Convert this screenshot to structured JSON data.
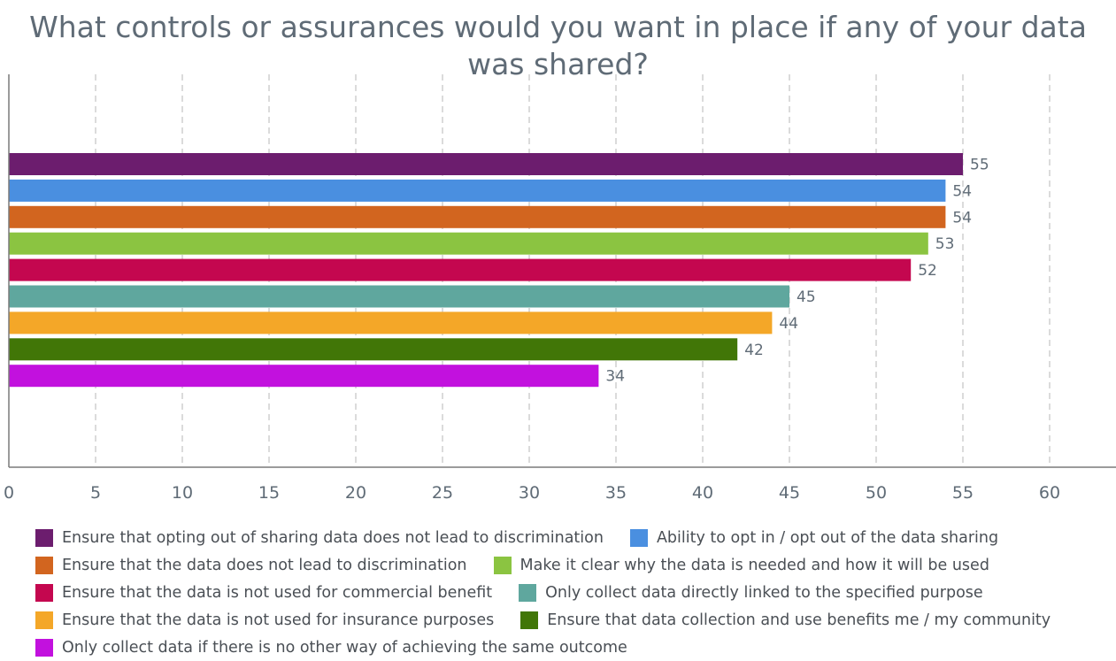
{
  "chart_data": {
    "type": "bar",
    "orientation": "horizontal",
    "title": "What controls or assurances would you want in place if any of your data was shared?",
    "xlim": [
      0,
      64
    ],
    "x_ticks": [
      0,
      5,
      10,
      15,
      20,
      25,
      30,
      35,
      40,
      45,
      50,
      55,
      60
    ],
    "grid": "vertical-dashed",
    "legend_position": "bottom",
    "series": [
      {
        "name": "Ensure that opting out of sharing data does not lead to discrimination",
        "value": 55,
        "color": "#6c1d6e"
      },
      {
        "name": "Ability to opt in / opt out of the data sharing",
        "value": 54,
        "color": "#4a8fe0"
      },
      {
        "name": "Ensure that the data does not lead to discrimination",
        "value": 54,
        "color": "#d2651f"
      },
      {
        "name": "Make it clear why the data is needed and how it will be used",
        "value": 53,
        "color": "#8bc441"
      },
      {
        "name": "Ensure that the data is not used for commercial benefit",
        "value": 52,
        "color": "#c4074f"
      },
      {
        "name": "Only collect data directly linked to the specified purpose",
        "value": 45,
        "color": "#5fa79e"
      },
      {
        "name": "Ensure that the data is not used for insurance purposes",
        "value": 44,
        "color": "#f4a728"
      },
      {
        "name": "Ensure that data collection and use benefits me / my community",
        "value": 42,
        "color": "#417607"
      },
      {
        "name": "Only collect data if there is no other way of achieving the same outcome",
        "value": 34,
        "color": "#c211de"
      }
    ]
  }
}
